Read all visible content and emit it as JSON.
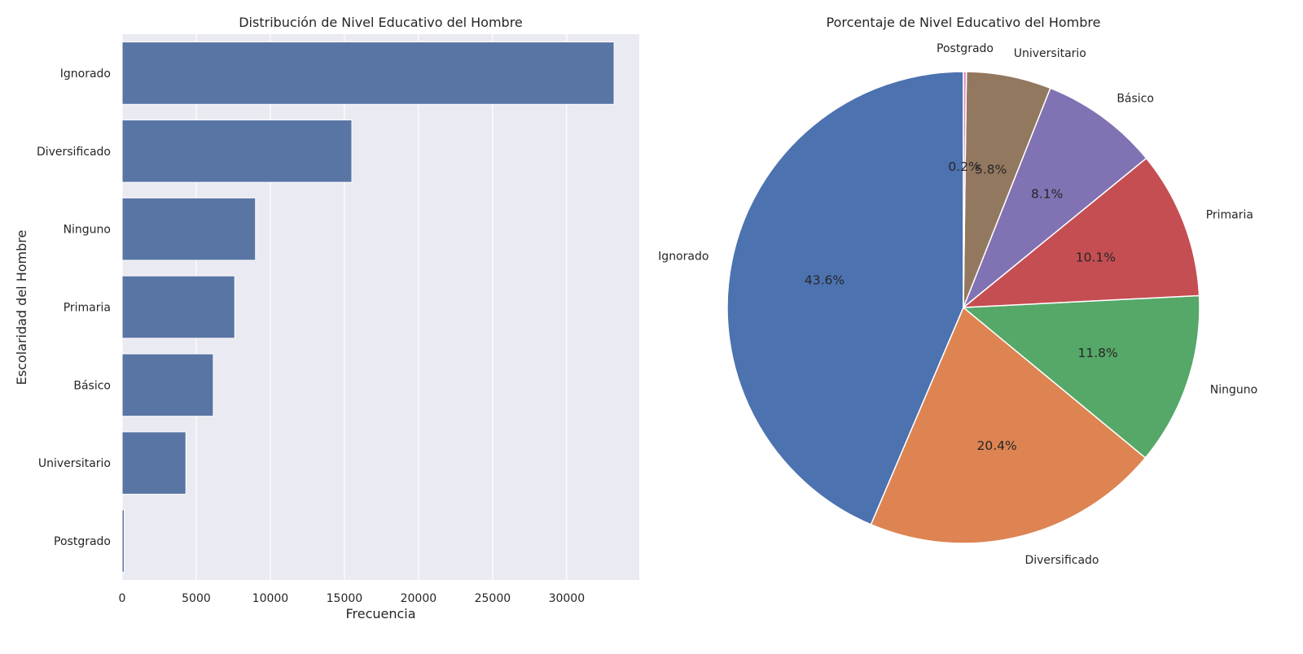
{
  "chart_data": [
    {
      "type": "bar",
      "orientation": "horizontal",
      "title": "Distribución de Nivel Educativo del Hombre",
      "xlabel": "Frecuencia",
      "ylabel": "Escolaridad del Hombre",
      "categories": [
        "Ignorado",
        "Diversificado",
        "Ninguno",
        "Primaria",
        "Básico",
        "Universitario",
        "Postgrado"
      ],
      "values": [
        33200,
        15500,
        9000,
        7600,
        6150,
        4300,
        140
      ],
      "xlim": [
        0,
        34900
      ],
      "xticks": [
        0,
        5000,
        10000,
        15000,
        20000,
        25000,
        30000
      ],
      "xtick_labels": [
        "0",
        "5000",
        "10000",
        "15000",
        "20000",
        "25000",
        "30000"
      ],
      "grid": true,
      "colors": {
        "bar": "#5975a4",
        "background": "#eaeaf2",
        "grid": "#ffffff"
      }
    },
    {
      "type": "pie",
      "title": "Porcentaje de Nivel Educativo del Hombre",
      "start_angle": 90,
      "direction": "counterclockwise",
      "labels": [
        "Ignorado",
        "Diversificado",
        "Ninguno",
        "Primaria",
        "Básico",
        "Universitario",
        "Postgrado"
      ],
      "values": [
        43.6,
        20.4,
        11.8,
        10.1,
        8.1,
        5.8,
        0.2
      ],
      "pct_labels": [
        "43.6%",
        "20.4%",
        "11.8%",
        "10.1%",
        "8.1%",
        "5.8%",
        "0.2%"
      ],
      "colors": [
        "#4c72b0",
        "#dd8452",
        "#55a868",
        "#c44e52",
        "#8172b3",
        "#937860",
        "#da8bc3"
      ]
    }
  ]
}
